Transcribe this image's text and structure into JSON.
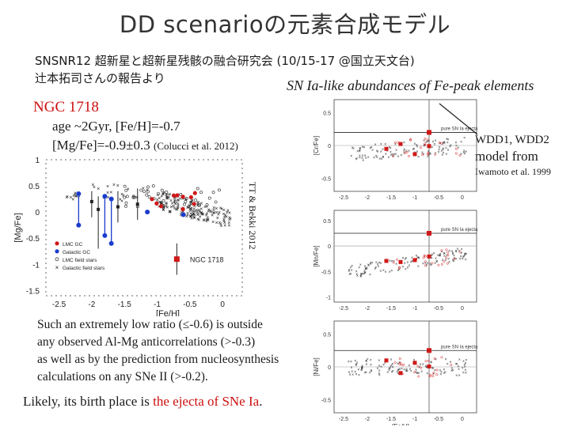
{
  "slide": {
    "title": "DD scenarioの元素合成モデル",
    "subtitle_line1": "SNSNR12 超新星と超新星残骸の融合研究会 (10/15-17 @国立天文台)",
    "subtitle_line2": "辻本拓司さんの報告より",
    "sn_ia_caption": "SN Ia-like abundances of Fe-peak elements",
    "ngc_title": "NGC 1718",
    "age_line": "age ~2Gyr, [Fe/H]=-0.7",
    "mgfe_line": "[Mg/Fe]=-0.9±0.3",
    "mgfe_cite": "(Colucci et al. 2012)",
    "wdd_label": "WDD1, WDD2",
    "model_from": "model from",
    "iwamoto": "Iwamoto et al. 1999",
    "tt_bekki": "TT & Bekki 2012",
    "paragraph": [
      "Such an extremely low ratio (≤-0.6) is outside",
      "any observed  Al-Mg anticorrelations (>-0.3)",
      "as well as by the prediction from nucleosynthesis",
      "calculations on any SNe II (>-0.2)."
    ],
    "likely_prefix": "Likely, its birth place is ",
    "likely_red": "the ejecta of SNe Ia",
    "likely_suffix": "."
  },
  "colors": {
    "accent_red": "#cc1010",
    "point_black": "#222222",
    "lmc_red": "#d01818",
    "blue": "#1a3ccc"
  },
  "chart_data": [
    {
      "type": "scatter",
      "xlabel": "[Fe/H]",
      "ylabel": "[Mg/Fe]",
      "xticks": [
        "-2.5",
        "-2",
        "-1.5",
        "-1",
        "-0.5",
        "0"
      ],
      "yticks": [
        "1",
        "0.5",
        "0",
        "-0.5",
        "-1",
        "-1.5"
      ],
      "xlim": [
        -2.7,
        0.3
      ],
      "ylim": [
        -1.6,
        1.0
      ],
      "legend": [
        "LMC GC",
        "Galactic GC",
        "LMC field stars",
        "Galactic field stars",
        "NGC 1718"
      ],
      "ngc1718": {
        "x": -0.7,
        "y": -0.9,
        "yerr": 0.3
      },
      "lmc_gc": [
        {
          "x": -2.2,
          "y": 0.35,
          "low": -0.25
        },
        {
          "x": -1.8,
          "y": 0.3,
          "low": -0.45
        },
        {
          "x": -1.7,
          "y": 0.25,
          "low": -0.6
        },
        {
          "x": -1.15,
          "y": 0.0
        },
        {
          "x": -0.6,
          "y": -0.05
        }
      ],
      "galactic_gc": [
        {
          "x": -2.0,
          "y": 0.2,
          "low": -0.1,
          "high": 0.4
        },
        {
          "x": -1.6,
          "y": 0.1,
          "low": -0.2,
          "high": 0.4
        },
        {
          "x": -1.3,
          "y": 0.15,
          "low": -0.15,
          "high": 0.45
        },
        {
          "x": -1.9,
          "y": 0.05,
          "low": -0.7,
          "high": 0.3
        }
      ]
    },
    {
      "type": "scatter",
      "xlabel": "",
      "ylabel": "[Cr/Fe]",
      "xticks": [
        "-2.5",
        "-2",
        "-1.5",
        "-1",
        "-0.5",
        "0"
      ],
      "xlim": [
        -2.7,
        0.3
      ],
      "yticks": [
        "0.5",
        "0",
        "-0.5"
      ],
      "ylim": [
        -0.7,
        0.7
      ],
      "annotation": "pure SN Ia ejecta"
    },
    {
      "type": "scatter",
      "xlabel": "",
      "ylabel": "[Mn/Fe]",
      "xticks": [
        "-2.5",
        "-2",
        "-1.5",
        "-1",
        "-0.5",
        "0"
      ],
      "xlim": [
        -2.7,
        0.3
      ],
      "yticks": [
        "0.5",
        "0",
        "-0.5",
        "-1"
      ],
      "ylim": [
        -1.1,
        0.7
      ],
      "annotation": "pure SN Ia ejecta"
    },
    {
      "type": "scatter",
      "xlabel": "[Fe/H]",
      "ylabel": "[Ni/Fe]",
      "xticks": [
        "-2.5",
        "-2",
        "-1.5",
        "-1",
        "-0.5",
        "0"
      ],
      "xlim": [
        -2.7,
        0.3
      ],
      "yticks": [
        "0.5",
        "0",
        "-0.5"
      ],
      "ylim": [
        -0.7,
        0.7
      ],
      "annotation": "pure SN Ia ejecta"
    }
  ]
}
